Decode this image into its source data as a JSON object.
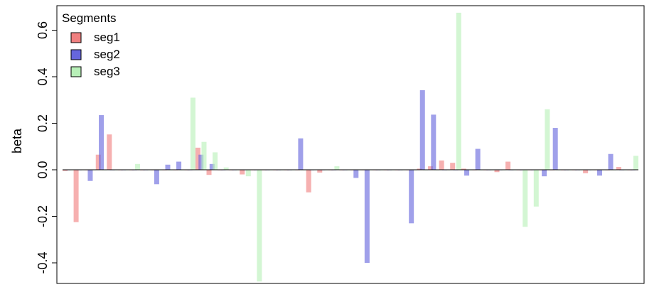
{
  "chart_data": {
    "type": "bar",
    "title": "",
    "xlabel": "",
    "ylabel": "beta",
    "ylim": [
      -0.5,
      0.68
    ],
    "yticks": [
      -0.4,
      -0.2,
      0.0,
      0.2,
      0.4,
      0.6
    ],
    "ytick_labels": [
      "-0.4",
      "-0.2",
      "0.0",
      "0.2",
      "0.4",
      "0.6"
    ],
    "grid": false,
    "legend": {
      "title": "Segments",
      "position": "top-left"
    },
    "series": [
      {
        "name": "seg1",
        "color": "#f08080",
        "values": [
          -0.005,
          -0.225,
          0.0,
          0.065,
          0.152,
          0.0,
          0.0,
          0.0,
          0.0,
          0.0,
          0.0,
          0.0,
          0.095,
          -0.022,
          0.0,
          0.0,
          -0.02,
          0.0,
          0.0,
          0.0,
          0.0,
          0.0,
          -0.097,
          -0.012,
          0.0,
          0.0,
          0.0,
          0.0,
          0.0,
          0.0,
          0.0,
          0.0,
          0.005,
          0.015,
          0.04,
          0.03,
          0.005,
          0.0,
          0.0,
          -0.01,
          0.035,
          0.0,
          0.0,
          0.0,
          0.0,
          0.0,
          0.0,
          -0.015,
          0.0,
          0.0,
          0.012,
          0.0
        ]
      },
      {
        "name": "seg2",
        "color": "#6666dd",
        "values": [
          0.0,
          0.0,
          -0.048,
          0.235,
          0.0,
          0.0,
          0.0,
          0.0,
          -0.062,
          0.022,
          0.035,
          0.0,
          0.065,
          0.025,
          0.0,
          0.0,
          0.0,
          0.0,
          0.0,
          0.0,
          0.0,
          0.135,
          0.0,
          0.0,
          0.0,
          0.0,
          -0.035,
          -0.4,
          0.0,
          0.0,
          0.0,
          -0.23,
          0.342,
          0.237,
          0.0,
          0.0,
          -0.025,
          0.09,
          0.0,
          0.0,
          0.0,
          0.0,
          0.0,
          -0.028,
          0.18,
          0.0,
          0.0,
          0.0,
          -0.025,
          0.068,
          0.0,
          0.0
        ]
      },
      {
        "name": "seg3",
        "color": "#b8f0b8",
        "values": [
          0.0,
          0.0,
          0.0,
          0.0,
          0.0,
          0.0,
          0.025,
          0.0,
          0.0,
          0.0,
          0.0,
          0.31,
          0.12,
          0.075,
          0.01,
          0.0,
          -0.028,
          -0.48,
          0.0,
          0.0,
          0.0,
          0.0,
          0.0,
          0.0,
          0.015,
          0.0,
          0.0,
          0.0,
          0.0,
          0.0,
          0.0,
          0.0,
          0.0,
          0.0,
          0.0,
          0.675,
          0.0,
          0.0,
          0.0,
          0.0,
          0.0,
          -0.245,
          -0.158,
          0.26,
          0.0,
          0.0,
          0.0,
          0.0,
          0.0,
          0.0,
          0.0,
          0.06
        ]
      }
    ]
  }
}
